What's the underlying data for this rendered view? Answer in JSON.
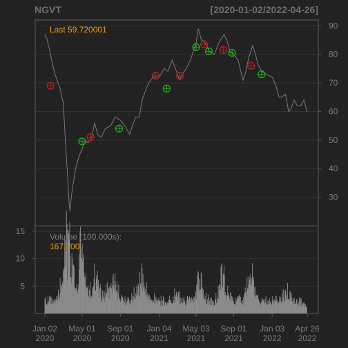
{
  "header": {
    "symbol": "NGVT",
    "range": "[2020-01-02/2022-04-26]"
  },
  "price_panel": {
    "last_label": "Last 59.720001",
    "y_ticks": [
      "30",
      "40",
      "50",
      "60",
      "70",
      "80",
      "90"
    ]
  },
  "volume_panel": {
    "label": "Volume (100,000s):",
    "value": "167,700",
    "y_ticks": [
      "5",
      "10",
      "15"
    ]
  },
  "colors": {
    "background": "#222222",
    "frame": "#5a5a5a",
    "grid": "#333333",
    "price": "#7a7a7a",
    "accent": "#f39c12",
    "buy": "#1faa1f",
    "sell": "#b22222",
    "volume": "#8c8c8c"
  },
  "chart_data": {
    "type": "line",
    "title": "NGVT",
    "x_axis_labels": [
      {
        "date": "2020-01-02",
        "line1": "Jan 02",
        "line2": "2020"
      },
      {
        "date": "2020-05-01",
        "line1": "May 01",
        "line2": "2020"
      },
      {
        "date": "2020-09-01",
        "line1": "Sep 01",
        "line2": "2020"
      },
      {
        "date": "2021-01-04",
        "line1": "Jan 04",
        "line2": "2021"
      },
      {
        "date": "2021-05-03",
        "line1": "May 03",
        "line2": "2021"
      },
      {
        "date": "2021-09-01",
        "line1": "Sep 01",
        "line2": "2021"
      },
      {
        "date": "2022-01-03",
        "line1": "Jan 03",
        "line2": "2022"
      },
      {
        "date": "2022-04-26",
        "line1": "Apr 26",
        "line2": "2022"
      }
    ],
    "price_ylim": [
      20,
      92
    ],
    "volume_ylim": [
      0,
      16
    ],
    "price_series": {
      "name": "Close",
      "points": [
        [
          "2020-01-02",
          87
        ],
        [
          "2020-01-10",
          85
        ],
        [
          "2020-01-20",
          80
        ],
        [
          "2020-02-01",
          74
        ],
        [
          "2020-02-10",
          71
        ],
        [
          "2020-02-20",
          68
        ],
        [
          "2020-03-01",
          63
        ],
        [
          "2020-03-05",
          56
        ],
        [
          "2020-03-10",
          46
        ],
        [
          "2020-03-15",
          38
        ],
        [
          "2020-03-20",
          28
        ],
        [
          "2020-03-23",
          25
        ],
        [
          "2020-03-27",
          30
        ],
        [
          "2020-04-01",
          34
        ],
        [
          "2020-04-10",
          40
        ],
        [
          "2020-04-20",
          44
        ],
        [
          "2020-05-01",
          47
        ],
        [
          "2020-05-10",
          50
        ],
        [
          "2020-05-20",
          49
        ],
        [
          "2020-06-01",
          51
        ],
        [
          "2020-06-10",
          56
        ],
        [
          "2020-06-20",
          52
        ],
        [
          "2020-07-01",
          51
        ],
        [
          "2020-07-15",
          54
        ],
        [
          "2020-08-01",
          55
        ],
        [
          "2020-08-15",
          58
        ],
        [
          "2020-09-01",
          57
        ],
        [
          "2020-09-15",
          55
        ],
        [
          "2020-10-01",
          52
        ],
        [
          "2020-10-10",
          55
        ],
        [
          "2020-10-20",
          58
        ],
        [
          "2020-11-01",
          58
        ],
        [
          "2020-11-10",
          64
        ],
        [
          "2020-11-20",
          67
        ],
        [
          "2020-12-01",
          70
        ],
        [
          "2020-12-15",
          72
        ],
        [
          "2021-01-04",
          72
        ],
        [
          "2021-01-20",
          75
        ],
        [
          "2021-02-01",
          74
        ],
        [
          "2021-02-15",
          78
        ],
        [
          "2021-03-01",
          74
        ],
        [
          "2021-03-10",
          71
        ],
        [
          "2021-03-20",
          73
        ],
        [
          "2021-04-01",
          75
        ],
        [
          "2021-04-15",
          78
        ],
        [
          "2021-05-03",
          84
        ],
        [
          "2021-05-10",
          89
        ],
        [
          "2021-05-20",
          85
        ],
        [
          "2021-06-01",
          84
        ],
        [
          "2021-06-15",
          81
        ],
        [
          "2021-07-01",
          80
        ],
        [
          "2021-07-15",
          84
        ],
        [
          "2021-08-01",
          87
        ],
        [
          "2021-08-10",
          85
        ],
        [
          "2021-08-20",
          81
        ],
        [
          "2021-09-01",
          80
        ],
        [
          "2021-09-15",
          78
        ],
        [
          "2021-10-01",
          71
        ],
        [
          "2021-10-10",
          74
        ],
        [
          "2021-10-20",
          79
        ],
        [
          "2021-11-01",
          83
        ],
        [
          "2021-11-10",
          80
        ],
        [
          "2021-11-20",
          76
        ],
        [
          "2021-12-01",
          74
        ],
        [
          "2021-12-15",
          73
        ],
        [
          "2022-01-03",
          72
        ],
        [
          "2022-01-15",
          69
        ],
        [
          "2022-01-25",
          65
        ],
        [
          "2022-02-01",
          65
        ],
        [
          "2022-02-15",
          66
        ],
        [
          "2022-02-25",
          60
        ],
        [
          "2022-03-05",
          61
        ],
        [
          "2022-03-15",
          64
        ],
        [
          "2022-03-25",
          62
        ],
        [
          "2022-04-05",
          62
        ],
        [
          "2022-04-15",
          64
        ],
        [
          "2022-04-26",
          59.72
        ]
      ]
    },
    "signals": [
      {
        "date": "2020-01-20",
        "price": 69,
        "type": "sell"
      },
      {
        "date": "2020-05-01",
        "price": 49.5,
        "type": "buy"
      },
      {
        "date": "2020-05-28",
        "price": 51,
        "type": "sell"
      },
      {
        "date": "2020-08-28",
        "price": 54,
        "type": "buy"
      },
      {
        "date": "2020-12-24",
        "price": 72.5,
        "type": "sell"
      },
      {
        "date": "2021-01-28",
        "price": 68,
        "type": "buy"
      },
      {
        "date": "2021-03-12",
        "price": 72.5,
        "type": "sell"
      },
      {
        "date": "2021-05-03",
        "price": 82.5,
        "type": "buy"
      },
      {
        "date": "2021-05-29",
        "price": 83.5,
        "type": "sell"
      },
      {
        "date": "2021-06-13",
        "price": 81,
        "type": "buy"
      },
      {
        "date": "2021-07-30",
        "price": 81.5,
        "type": "sell"
      },
      {
        "date": "2021-08-27",
        "price": 80.5,
        "type": "buy"
      },
      {
        "date": "2021-10-27",
        "price": 76,
        "type": "sell"
      },
      {
        "date": "2021-11-30",
        "price": 73,
        "type": "buy"
      }
    ],
    "volume_series": {
      "name": "Volume (100,000s)",
      "points": [
        [
          "2020-01-02",
          2
        ],
        [
          "2020-02-01",
          2.5
        ],
        [
          "2020-03-01",
          5
        ],
        [
          "2020-03-05",
          12
        ],
        [
          "2020-03-10",
          14
        ],
        [
          "2020-03-15",
          9
        ],
        [
          "2020-03-20",
          15.5
        ],
        [
          "2020-03-25",
          8
        ],
        [
          "2020-04-01",
          6.5
        ],
        [
          "2020-04-10",
          5
        ],
        [
          "2020-04-20",
          6
        ],
        [
          "2020-05-01",
          16
        ],
        [
          "2020-05-10",
          5
        ],
        [
          "2020-06-01",
          4
        ],
        [
          "2020-06-15",
          7
        ],
        [
          "2020-07-01",
          3
        ],
        [
          "2020-08-01",
          4
        ],
        [
          "2020-08-15",
          5.5
        ],
        [
          "2020-09-01",
          2.5
        ],
        [
          "2020-10-01",
          2
        ],
        [
          "2020-11-01",
          4.5
        ],
        [
          "2020-11-10",
          6
        ],
        [
          "2020-12-01",
          3
        ],
        [
          "2021-01-04",
          2
        ],
        [
          "2021-02-01",
          2.5
        ],
        [
          "2021-03-01",
          3
        ],
        [
          "2021-04-01",
          2
        ],
        [
          "2021-05-03",
          3
        ],
        [
          "2021-05-10",
          6.5
        ],
        [
          "2021-06-01",
          2.5
        ],
        [
          "2021-07-01",
          2
        ],
        [
          "2021-08-01",
          7
        ],
        [
          "2021-08-05",
          4
        ],
        [
          "2021-09-01",
          2.5
        ],
        [
          "2021-10-01",
          2
        ],
        [
          "2021-11-01",
          8
        ],
        [
          "2021-11-10",
          3
        ],
        [
          "2021-12-01",
          2
        ],
        [
          "2022-01-03",
          2
        ],
        [
          "2022-02-01",
          3
        ],
        [
          "2022-02-25",
          4
        ],
        [
          "2022-03-15",
          2
        ],
        [
          "2022-04-26",
          1.7
        ]
      ]
    }
  }
}
